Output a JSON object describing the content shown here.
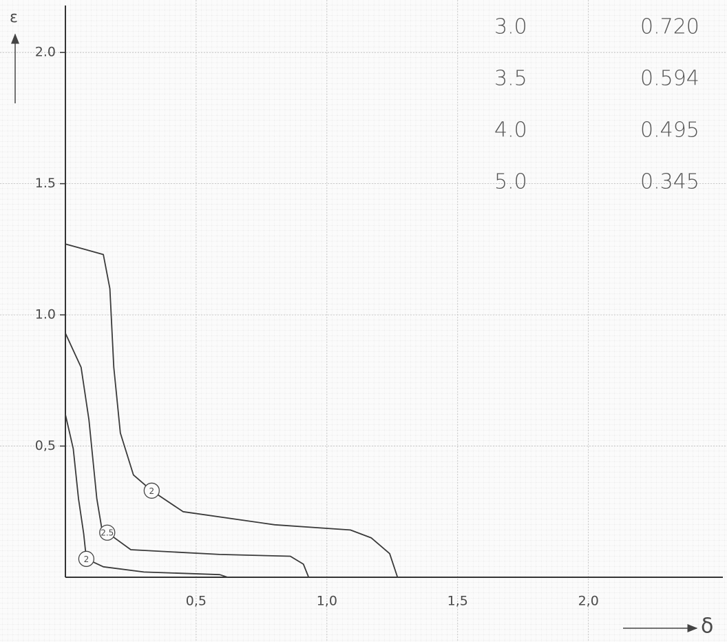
{
  "chart_data": {
    "type": "line",
    "x_label": "δ",
    "y_label": "ε",
    "xlim": [
      0,
      2.53
    ],
    "ylim": [
      0,
      2.2
    ],
    "xticks": [
      {
        "value": 0.5,
        "label": "0,5"
      },
      {
        "value": 1,
        "label": "1,0"
      },
      {
        "value": 1.5,
        "label": "1,5"
      },
      {
        "value": 2,
        "label": "2,0"
      }
    ],
    "yticks": [
      {
        "value": 0.5,
        "label": "0,5"
      },
      {
        "value": 1,
        "label": "1.0"
      },
      1.5,
      {
        "value": 2,
        "label": "2.0"
      }
    ],
    "grid": true,
    "color": "#3a3a3a",
    "table": [
      [
        "3.0",
        "0.720"
      ],
      [
        "3.5",
        "0.594"
      ],
      [
        "4.0",
        "0.495"
      ],
      [
        "5.0",
        "0.345"
      ]
    ],
    "series": [
      {
        "name": "2",
        "x": [
          0,
          0.145,
          0.17,
          0.185,
          0.21,
          0.26,
          0.33,
          0.45,
          0.8,
          1.09,
          1.17,
          1.24,
          1.27
        ],
        "values": [
          1.27,
          1.23,
          1.1,
          0.8,
          0.55,
          0.39,
          0.33,
          0.25,
          0.2,
          0.18,
          0.15,
          0.09,
          0
        ]
      },
      {
        "name": "2.5",
        "x": [
          0,
          0.06,
          0.09,
          0.12,
          0.14,
          0.16,
          0.25,
          0.59,
          0.86,
          0.91,
          0.93
        ],
        "values": [
          0.93,
          0.8,
          0.6,
          0.3,
          0.18,
          0.17,
          0.105,
          0.087,
          0.08,
          0.05,
          0
        ]
      },
      {
        "name": "2",
        "x": [
          0,
          0.03,
          0.05,
          0.07,
          0.08,
          0.145,
          0.3,
          0.59,
          0.62
        ],
        "values": [
          0.62,
          0.49,
          0.3,
          0.165,
          0.07,
          0.04,
          0.02,
          0.01,
          0
        ]
      }
    ]
  }
}
